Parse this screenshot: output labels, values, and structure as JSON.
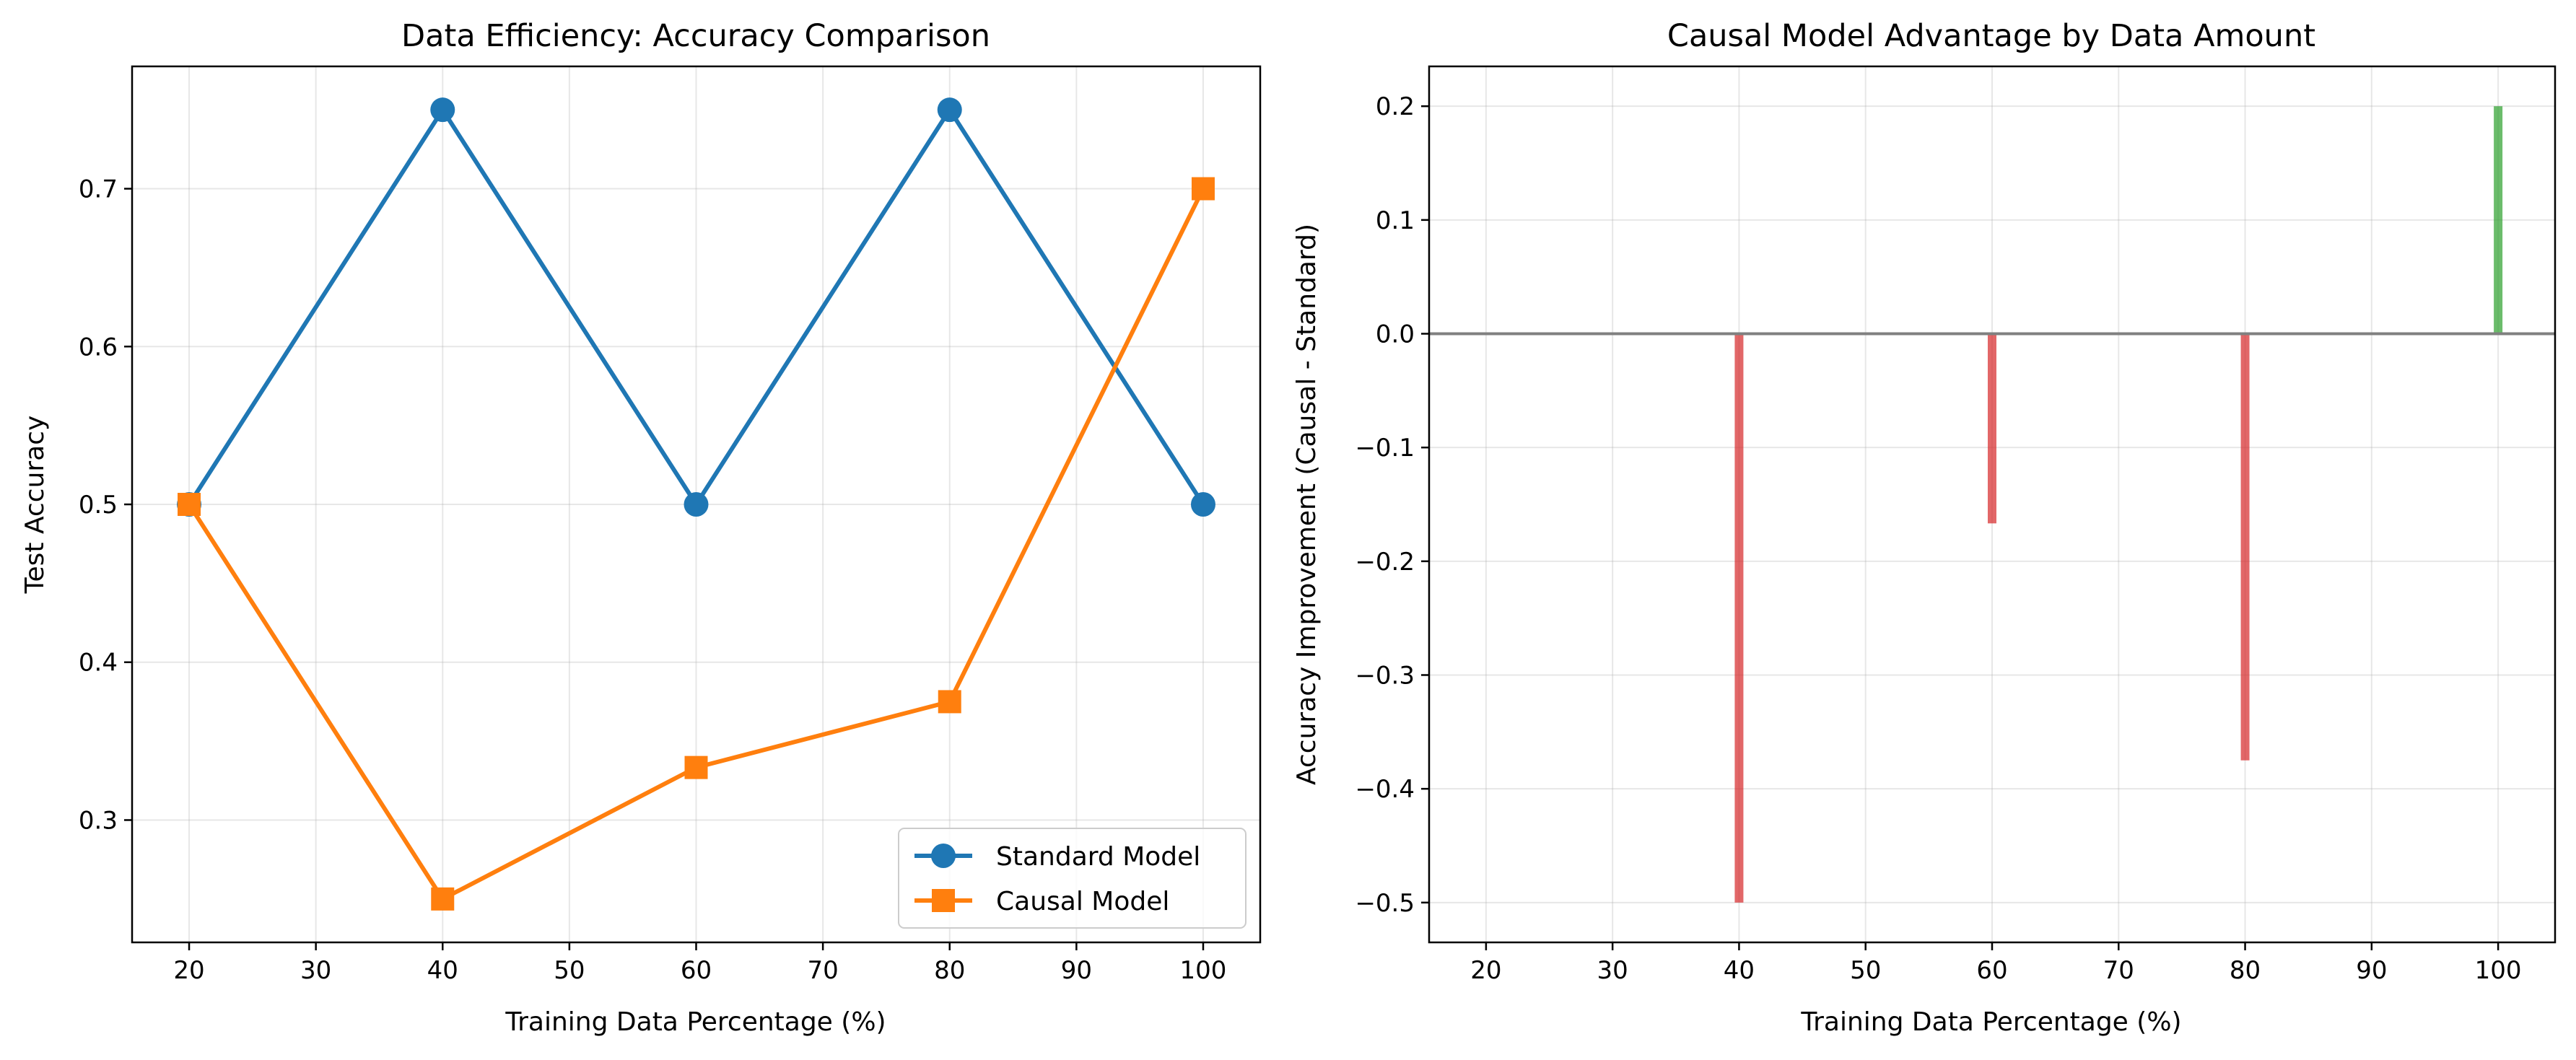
{
  "chart_data": [
    {
      "type": "line",
      "title": "Data Efficiency: Accuracy Comparison",
      "xlabel": "Training Data Percentage (%)",
      "ylabel": "Test Accuracy",
      "x": [
        20,
        40,
        60,
        80,
        100
      ],
      "xlim": [
        15.5,
        104.5
      ],
      "ylim": [
        0.2225,
        0.7775
      ],
      "xticks": [
        20,
        30,
        40,
        50,
        60,
        70,
        80,
        90,
        100
      ],
      "yticks": [
        0.3,
        0.4,
        0.5,
        0.6,
        0.7
      ],
      "grid": true,
      "legend_position": "lower-right",
      "series": [
        {
          "name": "Standard Model",
          "values": [
            0.5,
            0.75,
            0.5,
            0.75,
            0.5
          ],
          "color": "#1f77b4",
          "marker": "circle"
        },
        {
          "name": "Causal Model",
          "values": [
            0.5,
            0.25,
            0.3333,
            0.375,
            0.7
          ],
          "color": "#ff7f0e",
          "marker": "square"
        }
      ]
    },
    {
      "type": "bar",
      "title": "Causal Model Advantage by Data Amount",
      "xlabel": "Training Data Percentage (%)",
      "ylabel": "Accuracy Improvement (Causal - Standard)",
      "x": [
        20,
        40,
        60,
        80,
        100
      ],
      "values": [
        0.0,
        -0.5,
        -0.1667,
        -0.375,
        0.2
      ],
      "xlim": [
        15.5,
        104.5
      ],
      "ylim": [
        -0.535,
        0.235
      ],
      "xticks": [
        20,
        30,
        40,
        50,
        60,
        70,
        80,
        90,
        100
      ],
      "yticks": [
        -0.5,
        -0.4,
        -0.3,
        -0.2,
        -0.1,
        0.0,
        0.1,
        0.2
      ],
      "ytick_labels": [
        "−0.5",
        "−0.4",
        "−0.3",
        "−0.2",
        "−0.1",
        "0.0",
        "0.1",
        "0.2"
      ],
      "grid": true,
      "positive_color": "#2ca02c",
      "negative_color": "#d62728",
      "zero_line_color": "#808080"
    }
  ]
}
